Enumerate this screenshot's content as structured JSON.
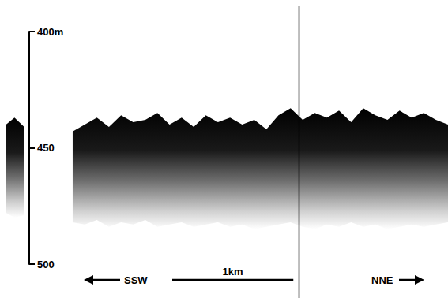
{
  "chart_data": {
    "type": "echogram",
    "x": [
      0.05,
      0.12,
      0.2,
      0.3,
      0.6,
      0.7,
      0.8,
      0.9,
      1.0,
      1.1,
      1.2,
      1.3,
      1.4,
      1.5,
      1.6,
      1.7,
      1.8,
      1.9,
      2.0,
      2.1,
      2.2,
      2.3,
      2.4,
      2.5,
      2.6,
      2.7,
      2.8,
      2.9,
      3.0,
      3.1,
      3.2,
      3.3,
      3.4,
      3.5,
      3.6,
      3.7
    ],
    "values": [
      440,
      437,
      441,
      null,
      443,
      440,
      437,
      441,
      436,
      439,
      438,
      435,
      440,
      437,
      441,
      436,
      439,
      437,
      440,
      438,
      442,
      436,
      433,
      438,
      435,
      437,
      434,
      439,
      433,
      436,
      438,
      434,
      437,
      435,
      438,
      440
    ],
    "bottom": [
      478,
      480,
      479,
      null,
      482,
      483,
      481,
      484,
      482,
      483,
      481,
      484,
      483,
      482,
      484,
      483,
      482,
      484,
      483,
      485,
      484,
      483,
      482,
      484,
      485,
      483,
      484,
      482,
      484,
      483,
      485,
      484,
      483,
      484,
      483,
      482
    ],
    "color": "#000000",
    "xlim": [
      0,
      3.7
    ],
    "ylim": [
      400,
      500
    ],
    "yticks": [
      {
        "value": 400,
        "label": "400m"
      },
      450,
      500
    ],
    "tick_labels": "y",
    "section_line_x": 2.47,
    "scale_bar": {
      "length": 1,
      "label": "1km"
    },
    "directions": {
      "left": "SSW",
      "right": "NNE"
    }
  }
}
